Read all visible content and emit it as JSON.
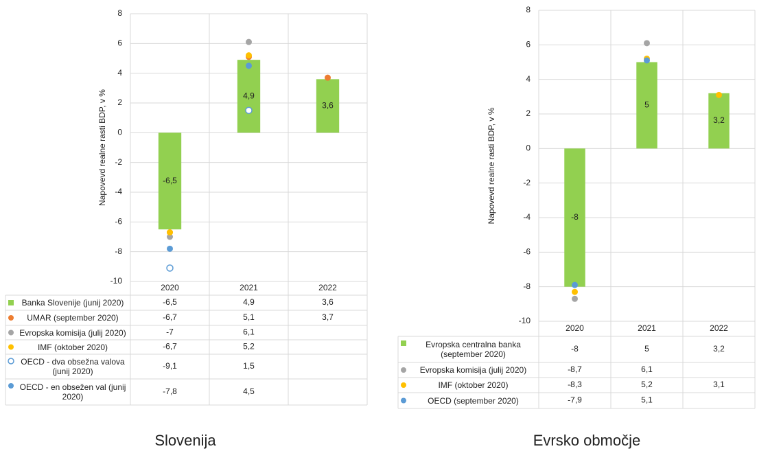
{
  "chart_data": [
    {
      "type": "bar",
      "title": "Slovenija",
      "y_label": "Napovevd realne rasti BDP, v %",
      "categories": [
        "2020",
        "2021",
        "2022"
      ],
      "ylim": [
        -10,
        8
      ],
      "yticks": [
        -10,
        -8,
        -6,
        -4,
        -2,
        0,
        2,
        4,
        6,
        8
      ],
      "grid": true,
      "series": [
        {
          "name": "Banka Slovenije (junij 2020)",
          "marker": "bar",
          "color": "#92d050",
          "values": [
            -6.5,
            4.9,
            3.6
          ],
          "value_labels": [
            "-6,5",
            "4,9",
            "3,6"
          ]
        },
        {
          "name": "UMAR (september 2020)",
          "marker": "circle",
          "color": "#ed7d31",
          "values": [
            -6.7,
            5.1,
            3.7
          ],
          "value_labels": [
            "-6,7",
            "5,1",
            "3,7"
          ]
        },
        {
          "name": "Evropska komisija (julij 2020)",
          "marker": "circle",
          "color": "#a5a5a5",
          "values": [
            -7,
            6.1,
            null
          ],
          "value_labels": [
            "-7",
            "6,1",
            null
          ]
        },
        {
          "name": "IMF (oktober 2020)",
          "marker": "circle",
          "color": "#ffc000",
          "values": [
            -6.7,
            5.2,
            null
          ],
          "value_labels": [
            "-6,7",
            "5,2",
            null
          ]
        },
        {
          "name": "OECD - dva obsežna valova (junij 2020)",
          "marker": "hollow-circle",
          "color": "#5b9bd5",
          "values": [
            -9.1,
            1.5,
            null
          ],
          "value_labels": [
            "-9,1",
            "1,5",
            null
          ]
        },
        {
          "name": "OECD - en obsežen val (junij 2020)",
          "marker": "circle",
          "color": "#5b9bd5",
          "values": [
            -7.8,
            4.5,
            null
          ],
          "value_labels": [
            "-7,8",
            "4,5",
            null
          ]
        }
      ]
    },
    {
      "type": "bar",
      "title": "Evrsko območje",
      "y_label": "Napovevd realne rasti BDP, v %",
      "categories": [
        "2020",
        "2021",
        "2022"
      ],
      "ylim": [
        -10,
        8
      ],
      "yticks": [
        -10,
        -8,
        -6,
        -4,
        -2,
        0,
        2,
        4,
        6,
        8
      ],
      "grid": true,
      "series": [
        {
          "name": "Evropska centralna banka (september 2020)",
          "marker": "bar",
          "color": "#92d050",
          "values": [
            -8,
            5,
            3.2
          ],
          "value_labels": [
            "-8",
            "5",
            "3,2"
          ]
        },
        {
          "name": "Evropska komisija (julij 2020)",
          "marker": "circle",
          "color": "#a5a5a5",
          "values": [
            -8.7,
            6.1,
            null
          ],
          "value_labels": [
            "-8,7",
            "6,1",
            null
          ]
        },
        {
          "name": "IMF (oktober 2020)",
          "marker": "circle",
          "color": "#ffc000",
          "values": [
            -8.3,
            5.2,
            3.1
          ],
          "value_labels": [
            "-8,3",
            "5,2",
            "3,1"
          ]
        },
        {
          "name": "OECD (september 2020)",
          "marker": "circle",
          "color": "#5b9bd5",
          "values": [
            -7.9,
            5.1,
            null
          ],
          "value_labels": [
            "-7,9",
            "5,1",
            null
          ]
        }
      ]
    }
  ]
}
